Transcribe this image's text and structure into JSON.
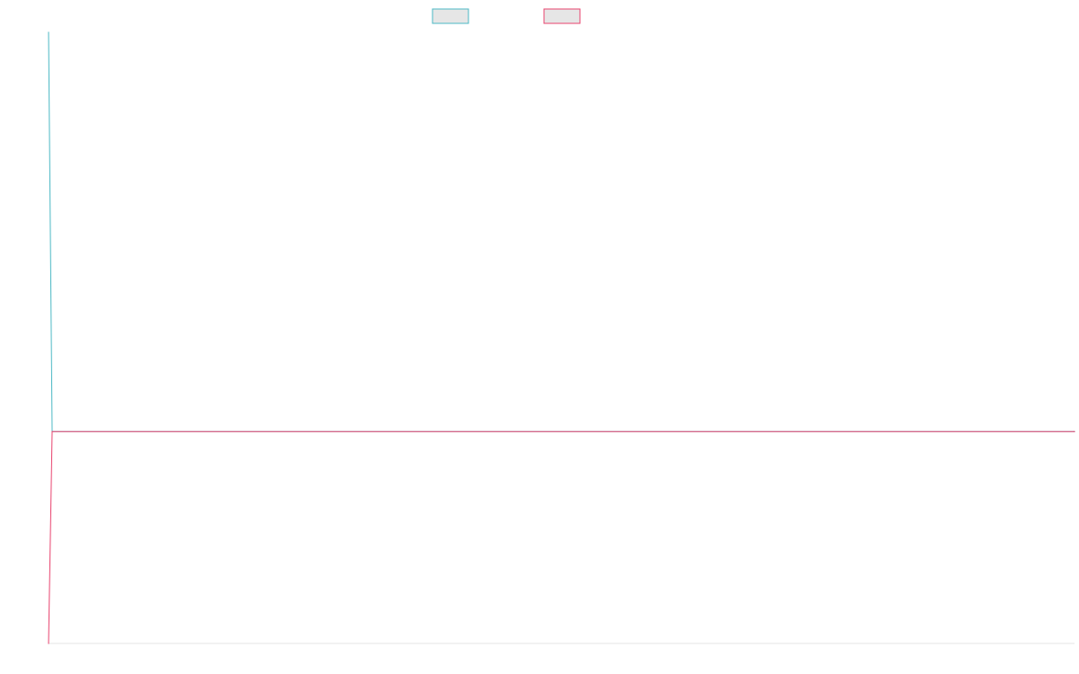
{
  "chart_data": {
    "type": "line",
    "title": "",
    "xlabel": "",
    "ylabel": "",
    "grid": false,
    "legend_position": "top",
    "x": [
      0,
      1,
      2
    ],
    "ylim": [
      -100,
      200
    ],
    "series": [
      {
        "name": "",
        "color": "#4bb8c4",
        "values": [
          200,
          4,
          4
        ]
      },
      {
        "name": "",
        "color": "#e8436e",
        "values": [
          -100,
          4,
          4
        ]
      }
    ]
  }
}
